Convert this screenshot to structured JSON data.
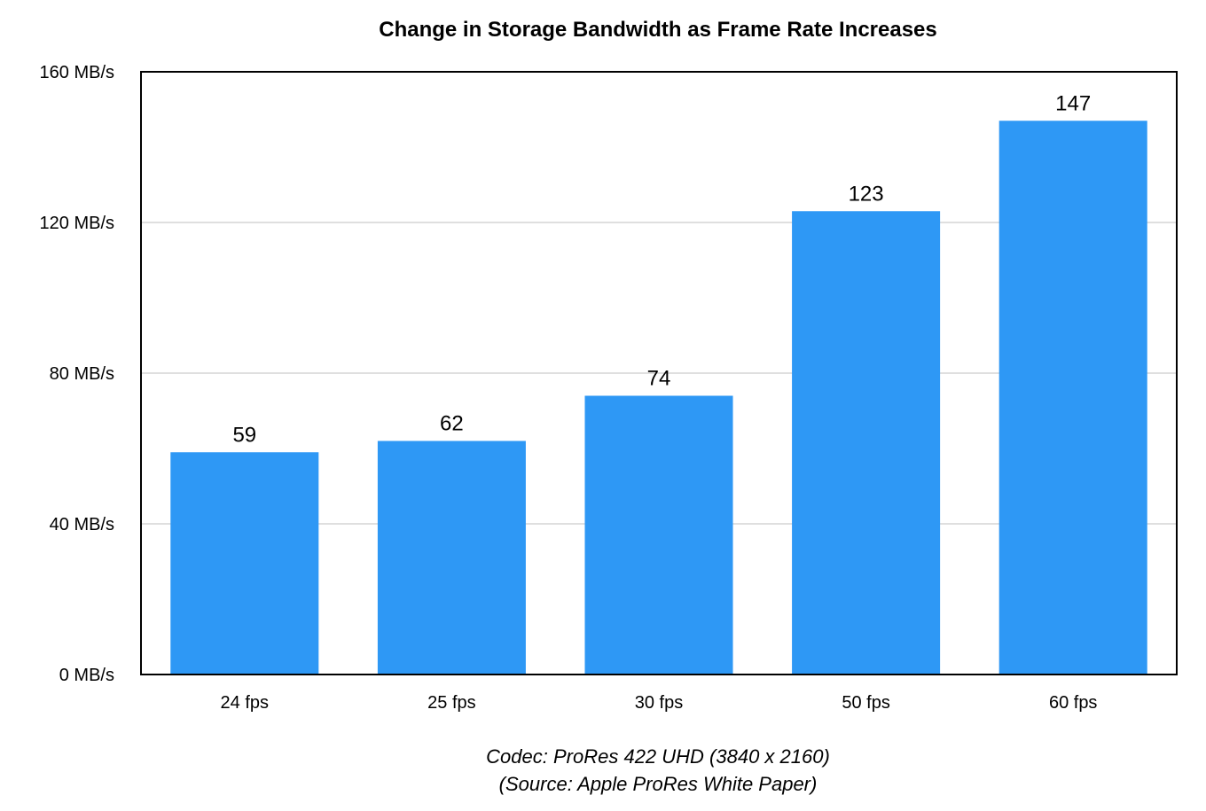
{
  "chart_data": {
    "type": "bar",
    "title": "Change in Storage Bandwidth as Frame Rate Increases",
    "categories": [
      "24 fps",
      "25 fps",
      "30 fps",
      "50 fps",
      "60 fps"
    ],
    "values": [
      59,
      62,
      74,
      123,
      147
    ],
    "data_labels": [
      "59",
      "62",
      "74",
      "123",
      "147"
    ],
    "y_ticks": [
      0,
      40,
      80,
      120,
      160
    ],
    "y_tick_labels": [
      "0 MB/s",
      "40 MB/s",
      "80 MB/s",
      "120 MB/s",
      "160 MB/s"
    ],
    "ylim": [
      0,
      160
    ],
    "xlabel": "",
    "ylabel": "",
    "grid": true,
    "legend": "none",
    "bar_color": "#2E98F5",
    "grid_color": "#BFBFBF",
    "axis_color": "#000000",
    "caption_lines": [
      "Codec: ProRes 422 UHD (3840 x 2160)",
      "(Source: Apple ProRes White Paper)"
    ]
  }
}
